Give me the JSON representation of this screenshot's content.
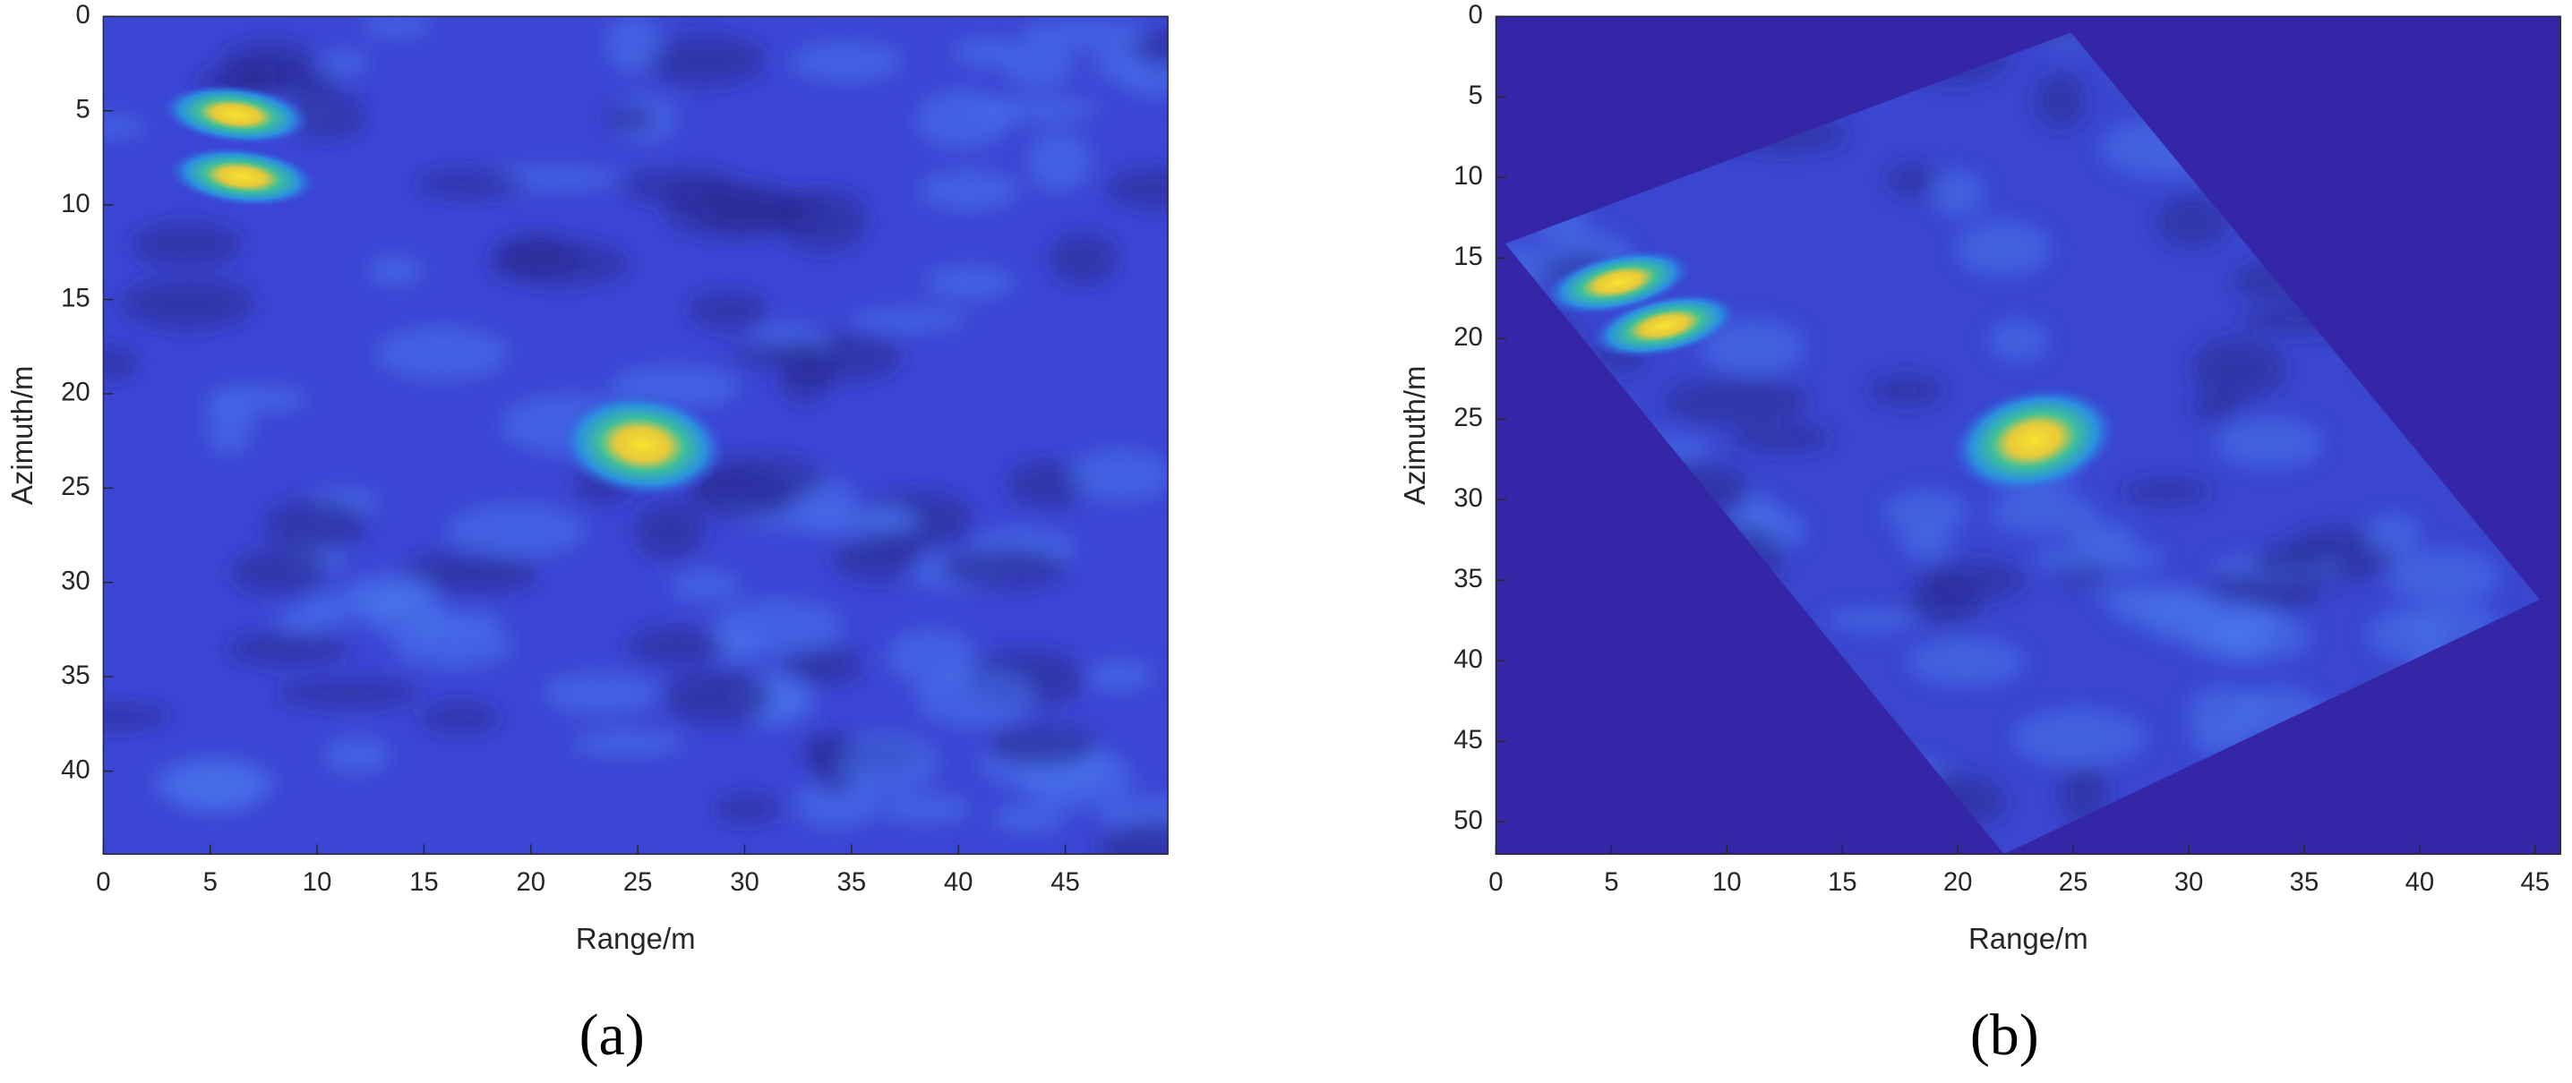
{
  "chart_data": [
    {
      "type": "heatmap",
      "caption": "(a)",
      "xlabel": "Range/m",
      "ylabel": "Azimuth/m",
      "xlim": [
        0,
        49.8
      ],
      "ylim": [
        0,
        44.4
      ],
      "y_reversed": true,
      "xticks": [
        0,
        5,
        10,
        15,
        20,
        25,
        30,
        35,
        40,
        45
      ],
      "yticks": [
        0,
        5,
        10,
        15,
        20,
        25,
        30,
        35,
        40
      ],
      "points": {
        "x": [
          6.2,
          6.5,
          25.2
        ],
        "y": [
          5.2,
          8.5,
          22.7
        ]
      }
    },
    {
      "type": "heatmap",
      "caption": "(b)",
      "xlabel": "Range/m",
      "ylabel": "Azimuth/m",
      "xlim": [
        0,
        46.1
      ],
      "ylim": [
        0,
        52
      ],
      "y_reversed": true,
      "xticks": [
        0,
        5,
        10,
        15,
        20,
        25,
        30,
        35,
        40,
        45
      ],
      "yticks": [
        0,
        5,
        10,
        15,
        20,
        25,
        30,
        35,
        40,
        45,
        50
      ],
      "footprint": {
        "x": [
          24.9,
          0.4,
          22.0,
          45.2
        ],
        "y": [
          1.0,
          14.1,
          52,
          36.2
        ]
      },
      "points": {
        "x": [
          5.3,
          7.3,
          23.3
        ],
        "y": [
          16.5,
          19.2,
          26.3
        ]
      }
    }
  ]
}
